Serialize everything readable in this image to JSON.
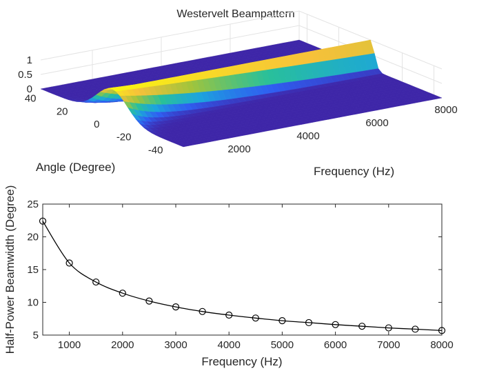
{
  "chart_data": [
    {
      "type": "surface",
      "title": "Westervelt Beampattern",
      "xlabel": "Frequency (Hz)",
      "ylabel": "Angle (Degree)",
      "zlabel": "",
      "x_ticks": [
        2000,
        4000,
        6000,
        8000
      ],
      "y_ticks": [
        40,
        20,
        0,
        -20,
        -40
      ],
      "z_ticks": [
        0,
        0.5,
        1
      ],
      "z_tick_labels": [
        "0",
        "0.5",
        "1"
      ],
      "xlim": [
        500,
        8000
      ],
      "ylim": [
        -45,
        45
      ],
      "zlim": [
        0,
        1
      ],
      "colormap": [
        "#3e26a8",
        "#2f5ef1",
        "#1ca4dd",
        "#29c09a",
        "#a2c43b",
        "#f7c13a",
        "#f9fb0e"
      ],
      "grid": true,
      "surface": "normalized beampattern amplitude vs angle and frequency; main lobe at 0 degrees narrows as frequency increases"
    },
    {
      "type": "line",
      "title": "",
      "xlabel": "Frequency (Hz)",
      "ylabel": "Half-Power Beamwidth (Degree)",
      "xlim": [
        500,
        8000
      ],
      "ylim": [
        5,
        25
      ],
      "x_ticks": [
        1000,
        2000,
        3000,
        4000,
        5000,
        6000,
        7000,
        8000
      ],
      "y_ticks": [
        5,
        10,
        15,
        20,
        25
      ],
      "grid": false,
      "series": [
        {
          "marker": "circle",
          "x": [
            500,
            1000,
            1500,
            2000,
            2500,
            3000,
            3500,
            4000,
            4500,
            5000,
            5500,
            6000,
            6500,
            7000,
            7500,
            8000
          ],
          "values": [
            22.4,
            16.0,
            13.1,
            11.4,
            10.2,
            9.3,
            8.6,
            8.05,
            7.6,
            7.2,
            6.9,
            6.6,
            6.35,
            6.1,
            5.9,
            5.7
          ]
        }
      ]
    }
  ]
}
